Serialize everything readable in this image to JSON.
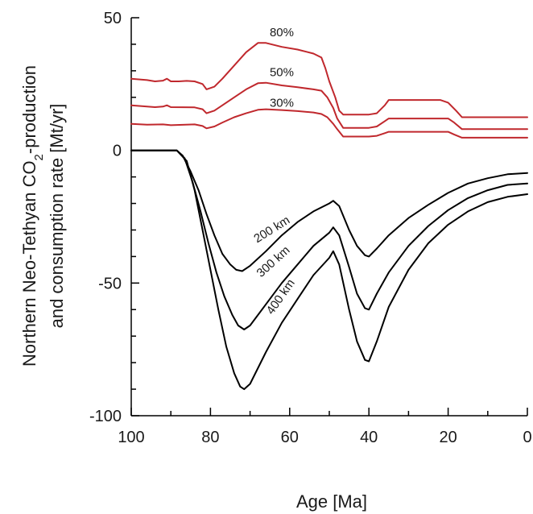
{
  "chart_data": {
    "type": "line",
    "xlabel": "Age [Ma]",
    "ylabel_line1_parts": [
      "Northern Neo-Tethyan CO",
      "2",
      "-production"
    ],
    "ylabel_line2": "and consumption rate [Mt/yr]",
    "xlim": [
      100,
      0
    ],
    "ylim": [
      -100,
      50
    ],
    "x_ticks": [
      100,
      80,
      60,
      40,
      20,
      0
    ],
    "x_tick_labels": [
      "100",
      "80",
      "60",
      "40",
      "20",
      "0"
    ],
    "y_ticks": [
      50,
      0,
      -50,
      -100
    ],
    "y_tick_labels": [
      "50",
      "0",
      "-50",
      "-100"
    ],
    "grid": false,
    "production_color": "#c0282d",
    "consumption_color": "#000000",
    "series": [
      {
        "name": "80%",
        "group": "production",
        "label_at": [
          62,
          43
        ],
        "points": [
          [
            100,
            27
          ],
          [
            96,
            26.5
          ],
          [
            94,
            26
          ],
          [
            92,
            26.3
          ],
          [
            91,
            27
          ],
          [
            90,
            26
          ],
          [
            88,
            26
          ],
          [
            86,
            26.2
          ],
          [
            84,
            26
          ],
          [
            82,
            25
          ],
          [
            81,
            23
          ],
          [
            79,
            24
          ],
          [
            77,
            27
          ],
          [
            74,
            32
          ],
          [
            71,
            37
          ],
          [
            68,
            40.5
          ],
          [
            66,
            40.5
          ],
          [
            62,
            39
          ],
          [
            58,
            38
          ],
          [
            54,
            36.5
          ],
          [
            52,
            35
          ],
          [
            51,
            31
          ],
          [
            50,
            26
          ],
          [
            48.5,
            20
          ],
          [
            47.5,
            15
          ],
          [
            46.5,
            13.5
          ],
          [
            40,
            13.5
          ],
          [
            38,
            14
          ],
          [
            36,
            17
          ],
          [
            35,
            19
          ],
          [
            28,
            19
          ],
          [
            22,
            19
          ],
          [
            20,
            18
          ],
          [
            18,
            15
          ],
          [
            16.5,
            12.5
          ],
          [
            0,
            12.5
          ]
        ]
      },
      {
        "name": "50%",
        "group": "production",
        "label_at": [
          62,
          28
        ],
        "points": [
          [
            100,
            17
          ],
          [
            96,
            16.5
          ],
          [
            94,
            16.3
          ],
          [
            92,
            16.5
          ],
          [
            91,
            17
          ],
          [
            90,
            16.3
          ],
          [
            84,
            16.2
          ],
          [
            82,
            15.5
          ],
          [
            81,
            14
          ],
          [
            79,
            15
          ],
          [
            77,
            17
          ],
          [
            74,
            20
          ],
          [
            71,
            23
          ],
          [
            68,
            25.3
          ],
          [
            66,
            25.5
          ],
          [
            62,
            24.5
          ],
          [
            58,
            23.8
          ],
          [
            54,
            23
          ],
          [
            52,
            22.5
          ],
          [
            50.5,
            20
          ],
          [
            49,
            16
          ],
          [
            48,
            12
          ],
          [
            46.5,
            8.5
          ],
          [
            40,
            8.5
          ],
          [
            38,
            9
          ],
          [
            36,
            11
          ],
          [
            35,
            12
          ],
          [
            20,
            12
          ],
          [
            18.5,
            10.5
          ],
          [
            16.5,
            8
          ],
          [
            0,
            8
          ]
        ]
      },
      {
        "name": "30%",
        "group": "production",
        "label_at": [
          62,
          16.5
        ],
        "points": [
          [
            100,
            10
          ],
          [
            96,
            9.7
          ],
          [
            92,
            9.8
          ],
          [
            90,
            9.5
          ],
          [
            84,
            9.8
          ],
          [
            82,
            9.2
          ],
          [
            81,
            8.3
          ],
          [
            79,
            9
          ],
          [
            77,
            10.5
          ],
          [
            74,
            12.5
          ],
          [
            71,
            14
          ],
          [
            68,
            15.3
          ],
          [
            66,
            15.5
          ],
          [
            62,
            15.2
          ],
          [
            58,
            14.8
          ],
          [
            54,
            14.3
          ],
          [
            52,
            13.7
          ],
          [
            50.5,
            12.5
          ],
          [
            49,
            10
          ],
          [
            48,
            8
          ],
          [
            46.5,
            5.2
          ],
          [
            40,
            5.2
          ],
          [
            38,
            5.5
          ],
          [
            36,
            6.5
          ],
          [
            35,
            7
          ],
          [
            20,
            7
          ],
          [
            18.5,
            6
          ],
          [
            16.5,
            4.8
          ],
          [
            0,
            4.8
          ]
        ]
      },
      {
        "name": "200 km",
        "group": "consumption",
        "label_at": [
          64,
          -31
        ],
        "label_rotate": -32,
        "points": [
          [
            100,
            0
          ],
          [
            90,
            0
          ],
          [
            88.5,
            0
          ],
          [
            87,
            -2
          ],
          [
            85,
            -8
          ],
          [
            83,
            -15
          ],
          [
            81,
            -24
          ],
          [
            79,
            -32
          ],
          [
            77,
            -39
          ],
          [
            75,
            -43
          ],
          [
            73.5,
            -45
          ],
          [
            72,
            -45.5
          ],
          [
            70,
            -43.5
          ],
          [
            66,
            -38
          ],
          [
            62,
            -32
          ],
          [
            58,
            -27
          ],
          [
            54,
            -23
          ],
          [
            50,
            -20
          ],
          [
            49,
            -19
          ],
          [
            47.5,
            -21
          ],
          [
            45,
            -30
          ],
          [
            43,
            -36
          ],
          [
            41,
            -39.5
          ],
          [
            40,
            -40
          ],
          [
            38,
            -37
          ],
          [
            35,
            -32
          ],
          [
            30,
            -25.5
          ],
          [
            25,
            -20.5
          ],
          [
            20,
            -16
          ],
          [
            15,
            -12.5
          ],
          [
            10,
            -10.5
          ],
          [
            5,
            -9
          ],
          [
            0,
            -8.5
          ]
        ]
      },
      {
        "name": "300 km",
        "group": "consumption",
        "label_at": [
          63.5,
          -43
        ],
        "label_rotate": -42,
        "points": [
          [
            100,
            0
          ],
          [
            90,
            0
          ],
          [
            88.5,
            0
          ],
          [
            86.5,
            -3
          ],
          [
            84.5,
            -12
          ],
          [
            82.5,
            -23
          ],
          [
            80.5,
            -35
          ],
          [
            78.5,
            -46
          ],
          [
            76.5,
            -55
          ],
          [
            74.5,
            -62
          ],
          [
            73,
            -66
          ],
          [
            71.5,
            -67.5
          ],
          [
            70,
            -66
          ],
          [
            66,
            -58
          ],
          [
            62,
            -50
          ],
          [
            58,
            -43
          ],
          [
            54,
            -36
          ],
          [
            50,
            -31
          ],
          [
            49,
            -29
          ],
          [
            47.5,
            -32
          ],
          [
            45,
            -44
          ],
          [
            43,
            -54
          ],
          [
            41,
            -59.5
          ],
          [
            40,
            -60
          ],
          [
            38,
            -54
          ],
          [
            35,
            -46
          ],
          [
            30,
            -36
          ],
          [
            25,
            -28.5
          ],
          [
            20,
            -22.5
          ],
          [
            15,
            -18
          ],
          [
            10,
            -15
          ],
          [
            5,
            -13
          ],
          [
            0,
            -12.5
          ]
        ]
      },
      {
        "name": "400 km",
        "group": "consumption",
        "label_at": [
          61.5,
          -56
        ],
        "label_rotate": -55,
        "points": [
          [
            100,
            0
          ],
          [
            90,
            0
          ],
          [
            88.5,
            0
          ],
          [
            86,
            -4
          ],
          [
            84,
            -15
          ],
          [
            82,
            -30
          ],
          [
            80,
            -45
          ],
          [
            78,
            -60
          ],
          [
            76,
            -74
          ],
          [
            74,
            -84
          ],
          [
            72.5,
            -89
          ],
          [
            71.5,
            -90
          ],
          [
            70,
            -88
          ],
          [
            66,
            -76
          ],
          [
            62,
            -65
          ],
          [
            58,
            -56
          ],
          [
            54,
            -47
          ],
          [
            50,
            -40.5
          ],
          [
            49,
            -38
          ],
          [
            47.5,
            -43
          ],
          [
            45,
            -60
          ],
          [
            43,
            -72
          ],
          [
            41,
            -79
          ],
          [
            40,
            -79.5
          ],
          [
            38,
            -72
          ],
          [
            35,
            -59
          ],
          [
            30,
            -45
          ],
          [
            25,
            -35
          ],
          [
            20,
            -28
          ],
          [
            15,
            -23
          ],
          [
            10,
            -19.5
          ],
          [
            5,
            -17.5
          ],
          [
            0,
            -16.5
          ]
        ]
      }
    ]
  }
}
